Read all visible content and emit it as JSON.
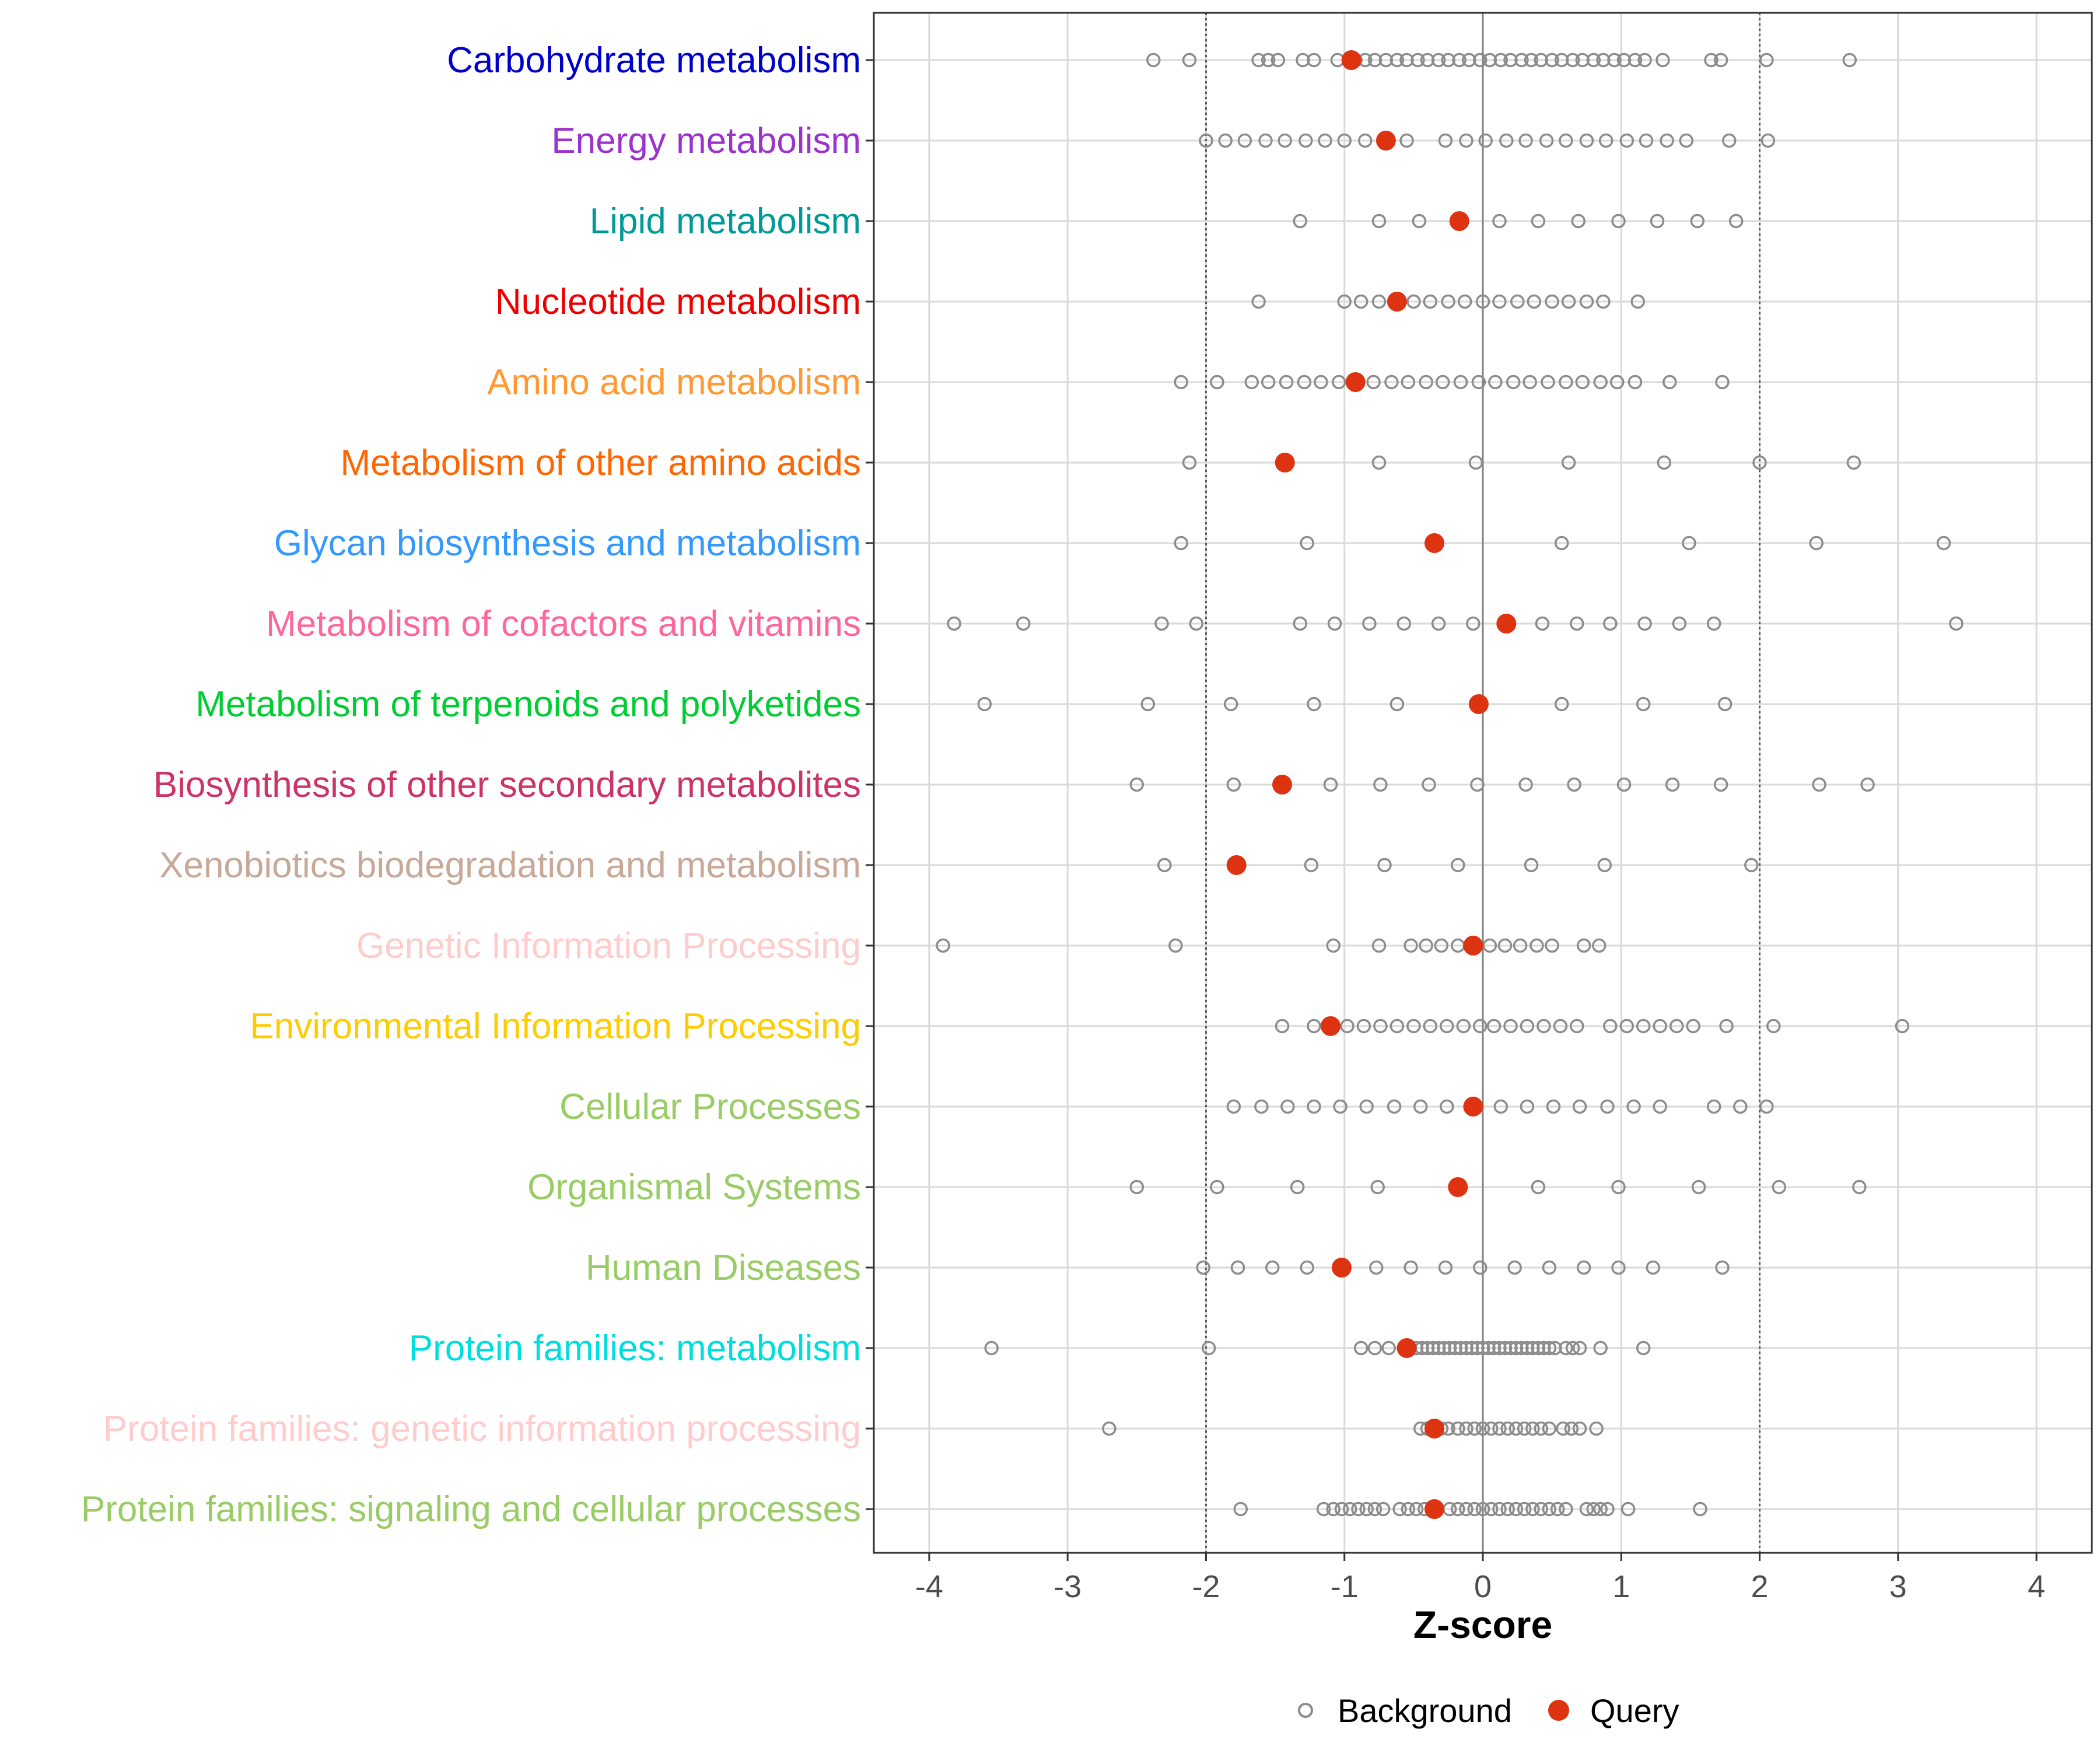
{
  "chart_data": {
    "type": "scatter",
    "xlabel": "Z-score",
    "xlim": [
      -4.4,
      4.4
    ],
    "xticks": [
      -4,
      -3,
      -2,
      -1,
      0,
      1,
      2,
      3,
      4
    ],
    "xtick_labels": [
      "-4",
      "-3",
      "-2",
      "-1",
      "0",
      "1",
      "2",
      "3",
      "4"
    ],
    "reference_lines": [
      -2,
      0,
      2
    ],
    "colors": {
      "background": "#8c8c8c",
      "query": "#dd3311",
      "grid": "#d9d9d9",
      "frame": "#333333"
    },
    "legend": [
      {
        "name": "Background",
        "marker": "hollow-circle"
      },
      {
        "name": "Query",
        "marker": "filled-circle"
      }
    ],
    "categories": [
      {
        "label": "Carbohydrate metabolism",
        "color": "#0000cc",
        "query": -0.95,
        "background": [
          -2.38,
          -2.12,
          -1.62,
          -1.55,
          -1.48,
          -1.3,
          -1.22,
          -1.05,
          -0.92,
          -0.85,
          -0.78,
          -0.7,
          -0.62,
          -0.55,
          -0.47,
          -0.4,
          -0.32,
          -0.25,
          -0.17,
          -0.1,
          -0.02,
          0.05,
          0.13,
          0.2,
          0.28,
          0.35,
          0.42,
          0.5,
          0.57,
          0.65,
          0.72,
          0.8,
          0.87,
          0.95,
          1.02,
          1.1,
          1.17,
          1.3,
          1.65,
          1.72,
          2.05,
          2.65
        ]
      },
      {
        "label": "Energy metabolism",
        "color": "#9933cc",
        "query": -0.7,
        "background": [
          -2.0,
          -1.86,
          -1.72,
          -1.57,
          -1.43,
          -1.28,
          -1.14,
          -1.0,
          -0.85,
          -0.55,
          -0.27,
          -0.12,
          0.02,
          0.17,
          0.31,
          0.46,
          0.6,
          0.75,
          0.89,
          1.04,
          1.18,
          1.33,
          1.47,
          1.78,
          2.06
        ]
      },
      {
        "label": "Lipid metabolism",
        "color": "#009999",
        "query": -0.17,
        "background": [
          -1.32,
          -0.75,
          -0.46,
          0.12,
          0.4,
          0.69,
          0.98,
          1.26,
          1.55,
          1.83
        ]
      },
      {
        "label": "Nucleotide metabolism",
        "color": "#ee0000",
        "query": -0.62,
        "background": [
          -1.62,
          -1.0,
          -0.88,
          -0.75,
          -0.63,
          -0.5,
          -0.38,
          -0.25,
          -0.13,
          0.0,
          0.12,
          0.25,
          0.37,
          0.5,
          0.62,
          0.75,
          0.87,
          1.12
        ]
      },
      {
        "label": "Amino acid metabolism",
        "color": "#ff9933",
        "query": -0.92,
        "background": [
          -2.18,
          -1.92,
          -1.67,
          -1.55,
          -1.42,
          -1.29,
          -1.17,
          -1.04,
          -0.79,
          -0.66,
          -0.54,
          -0.41,
          -0.29,
          -0.16,
          -0.03,
          0.09,
          0.22,
          0.34,
          0.47,
          0.6,
          0.72,
          0.85,
          0.97,
          1.1,
          1.35,
          1.73
        ]
      },
      {
        "label": "Metabolism of other amino acids",
        "color": "#ff6600",
        "query": -1.43,
        "background": [
          -2.12,
          -0.75,
          -0.05,
          0.62,
          1.31,
          2.0,
          2.68
        ]
      },
      {
        "label": "Glycan biosynthesis and metabolism",
        "color": "#3399ff",
        "query": -0.35,
        "background": [
          -2.18,
          -1.27,
          0.57,
          1.49,
          2.41,
          3.33
        ]
      },
      {
        "label": "Metabolism of cofactors and vitamins",
        "color": "#ff6699",
        "query": 0.17,
        "background": [
          -3.82,
          -3.32,
          -2.32,
          -2.07,
          -1.32,
          -1.07,
          -0.82,
          -0.57,
          -0.32,
          -0.07,
          0.43,
          0.68,
          0.92,
          1.17,
          1.42,
          1.67,
          3.42
        ]
      },
      {
        "label": "Metabolism of terpenoids and polyketides",
        "color": "#00cc33",
        "query": -0.03,
        "background": [
          -3.6,
          -2.42,
          -1.82,
          -1.22,
          -0.62,
          0.57,
          1.16,
          1.75
        ]
      },
      {
        "label": "Biosynthesis of other secondary metabolites",
        "color": "#cc3366",
        "query": -1.45,
        "background": [
          -2.5,
          -1.8,
          -1.1,
          -0.74,
          -0.39,
          -0.04,
          0.31,
          0.66,
          1.02,
          1.37,
          1.72,
          2.43,
          2.78
        ]
      },
      {
        "label": "Xenobiotics biodegradation and metabolism",
        "color": "#c8a898",
        "query": -1.78,
        "background": [
          -2.3,
          -1.24,
          -0.71,
          -0.18,
          0.35,
          0.88,
          1.94
        ]
      },
      {
        "label": "Genetic Information Processing",
        "color": "#ffcccc",
        "query": -0.07,
        "background": [
          -3.9,
          -2.22,
          -1.08,
          -0.75,
          -0.52,
          -0.41,
          -0.3,
          -0.18,
          0.05,
          0.16,
          0.27,
          0.39,
          0.5,
          0.73,
          0.84
        ]
      },
      {
        "label": "Environmental Information Processing",
        "color": "#ffcc00",
        "query": -1.1,
        "background": [
          -1.45,
          -1.22,
          -0.98,
          -0.86,
          -0.74,
          -0.62,
          -0.5,
          -0.38,
          -0.26,
          -0.14,
          -0.02,
          0.08,
          0.2,
          0.32,
          0.44,
          0.56,
          0.68,
          0.92,
          1.04,
          1.16,
          1.28,
          1.4,
          1.52,
          1.76,
          2.1,
          3.03
        ]
      },
      {
        "label": "Cellular Processes",
        "color": "#99cc66",
        "query": -0.07,
        "background": [
          -1.8,
          -1.6,
          -1.41,
          -1.22,
          -1.03,
          -0.84,
          -0.64,
          -0.45,
          -0.26,
          0.13,
          0.32,
          0.51,
          0.7,
          0.9,
          1.09,
          1.28,
          1.67,
          1.86,
          2.05
        ]
      },
      {
        "label": "Organismal Systems",
        "color": "#99cc66",
        "query": -0.18,
        "background": [
          -2.5,
          -1.92,
          -1.34,
          -0.76,
          0.4,
          0.98,
          1.56,
          2.14,
          2.72
        ]
      },
      {
        "label": "Human Diseases",
        "color": "#99cc66",
        "query": -1.02,
        "background": [
          -2.02,
          -1.77,
          -1.52,
          -1.27,
          -0.77,
          -0.52,
          -0.27,
          -0.02,
          0.23,
          0.48,
          0.73,
          0.98,
          1.23,
          1.73
        ]
      },
      {
        "label": "Protein families: metabolism",
        "color": "#00dddd",
        "query": -0.55,
        "background": [
          -3.55,
          -1.98,
          -0.88,
          -0.78,
          -0.68,
          -0.48,
          -0.44,
          -0.4,
          -0.36,
          -0.32,
          -0.28,
          -0.24,
          -0.2,
          -0.16,
          -0.12,
          -0.08,
          -0.04,
          0.0,
          0.04,
          0.08,
          0.12,
          0.16,
          0.2,
          0.24,
          0.28,
          0.32,
          0.36,
          0.4,
          0.44,
          0.48,
          0.52,
          0.6,
          0.65,
          0.7,
          0.85,
          1.16
        ]
      },
      {
        "label": "Protein families: genetic information processing",
        "color": "#ffcccc",
        "query": -0.35,
        "background": [
          -2.7,
          -0.45,
          -0.4,
          -0.3,
          -0.25,
          -0.18,
          -0.12,
          -0.06,
          0.0,
          0.06,
          0.12,
          0.18,
          0.24,
          0.3,
          0.36,
          0.42,
          0.48,
          0.58,
          0.64,
          0.7,
          0.82
        ]
      },
      {
        "label": "Protein families: signaling and cellular processes",
        "color": "#99cc66",
        "query": -0.35,
        "background": [
          -1.75,
          -1.15,
          -1.08,
          -1.02,
          -0.96,
          -0.9,
          -0.84,
          -0.78,
          -0.72,
          -0.6,
          -0.54,
          -0.48,
          -0.42,
          -0.24,
          -0.18,
          -0.12,
          -0.06,
          0.0,
          0.06,
          0.12,
          0.18,
          0.24,
          0.3,
          0.36,
          0.42,
          0.48,
          0.54,
          0.6,
          0.75,
          0.8,
          0.85,
          0.9,
          1.05,
          1.57
        ]
      }
    ]
  }
}
